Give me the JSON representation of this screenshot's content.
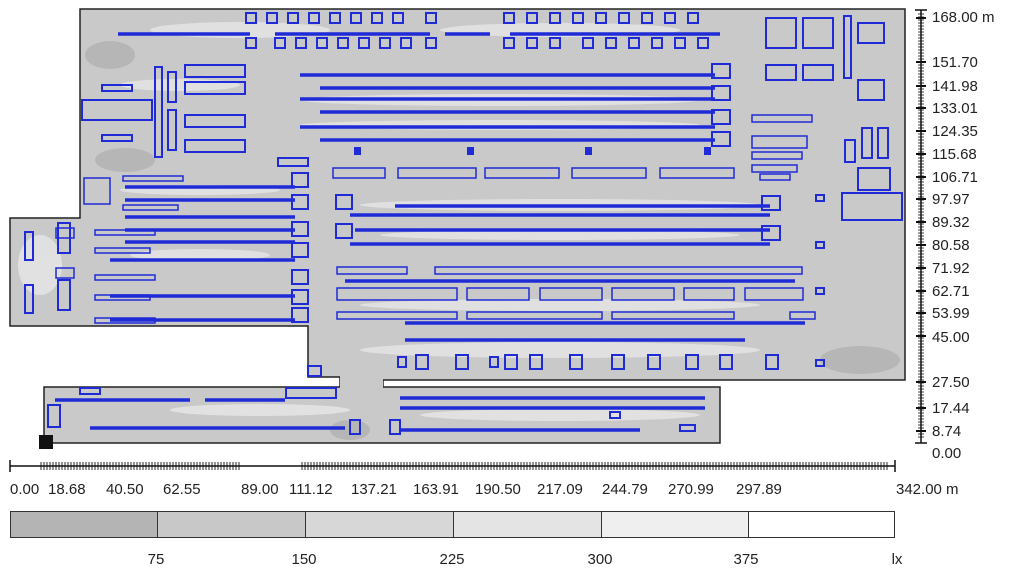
{
  "diagram": {
    "y_axis": {
      "ticks": [
        "168.00 m",
        "151.70",
        "141.98",
        "133.01",
        "124.35",
        "115.68",
        "106.71",
        "97.97",
        "89.32",
        "80.58",
        "71.92",
        "62.71",
        "53.99",
        "45.00",
        "27.50",
        "17.44",
        "8.74",
        "0.00"
      ]
    },
    "x_axis": {
      "ticks": [
        "0.00",
        "18.68",
        "40.50",
        "62.55",
        "89.00",
        "111.12",
        "137.21",
        "163.91",
        "190.50",
        "217.09",
        "244.79",
        "270.99",
        "297.89",
        "342.00 m"
      ]
    },
    "legend": {
      "bands": [
        {
          "color": "#b4b4b4"
        },
        {
          "color": "#c8c8c8"
        },
        {
          "color": "#d7d7d7"
        },
        {
          "color": "#e4e4e4"
        },
        {
          "color": "#efefef"
        },
        {
          "color": "#ffffff"
        }
      ],
      "labels": [
        "75",
        "150",
        "225",
        "300",
        "375",
        "lx"
      ]
    },
    "colors": {
      "layout_stroke": "#1f2bd6",
      "outline": "#333333"
    }
  }
}
